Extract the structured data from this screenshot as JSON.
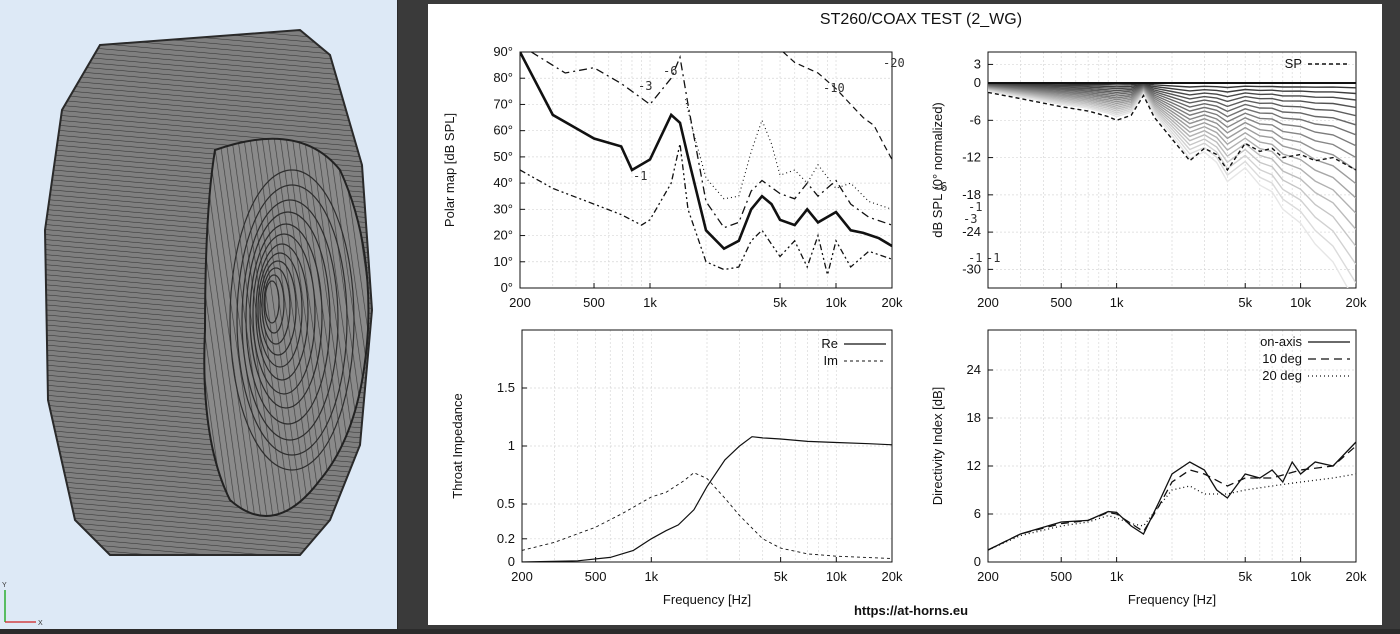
{
  "window": {
    "title": "ST260/COAX TEST (2_WG)",
    "url": "https://at-horns.eu"
  },
  "viewer": {
    "axis_y": "Y",
    "axis_x": "X"
  },
  "colors": {
    "viewer_background": "#dde9f6",
    "plot_background": "#ffffff",
    "mesh": "#7a7a7a",
    "curve": "#000000"
  },
  "charts": [
    {
      "id": "polar-map",
      "type": "contour",
      "ylabel": "Polar map [dB SPL]",
      "xscale": "log",
      "xlim": [
        200,
        20000
      ],
      "ylim": [
        0,
        90
      ],
      "x_ticks": [
        "200",
        "500",
        "1k",
        "5k",
        "10k",
        "20k"
      ],
      "y_ticks": [
        "0°",
        "10°",
        "20°",
        "30°",
        "40°",
        "50°",
        "60°",
        "70°",
        "80°",
        "90°"
      ],
      "contour_labels": [
        "-1",
        "-3",
        "-6",
        "-10",
        "-20",
        "-6",
        "-3",
        "-1",
        "-1",
        "-1"
      ],
      "series": [
        {
          "level": "-3",
          "x": [
            200,
            300,
            500,
            700,
            800,
            1000,
            1300,
            1450,
            1600,
            2000,
            2500,
            3000,
            3500,
            4000,
            4500,
            5000,
            6000,
            7000,
            8000,
            10000,
            12000,
            14000,
            17000,
            20000
          ],
          "y": [
            90,
            66,
            57,
            54,
            45,
            49,
            66,
            63,
            50,
            22,
            15,
            18,
            30,
            35,
            32,
            26,
            24,
            30,
            25,
            29,
            22,
            21,
            19,
            16
          ]
        },
        {
          "level": "-1",
          "x": [
            200,
            300,
            500,
            700,
            900,
            1000,
            1300,
            1450,
            1600,
            2000,
            2500,
            3000,
            3500,
            4000,
            5000,
            6000,
            7000,
            8000,
            9000,
            10000,
            12000,
            15000,
            20000
          ],
          "y": [
            45,
            38,
            32,
            28,
            24,
            26,
            40,
            55,
            30,
            10,
            7,
            8,
            18,
            22,
            12,
            18,
            8,
            20,
            5,
            18,
            8,
            14,
            11
          ]
        },
        {
          "level": "-6",
          "x": [
            230,
            350,
            500,
            700,
            1000,
            1300,
            1450,
            1600,
            2000,
            2500,
            3000,
            3500,
            4000,
            5000,
            6000,
            7000,
            8000,
            10000,
            12000,
            15000,
            20000
          ],
          "y": [
            90,
            82,
            84,
            78,
            70,
            80,
            88,
            70,
            33,
            23,
            25,
            37,
            41,
            36,
            34,
            40,
            35,
            41,
            32,
            27,
            24
          ]
        },
        {
          "level": "-10",
          "x": [
            1550,
            1700,
            2000,
            2500,
            3000,
            3500,
            4000,
            4500,
            5000,
            6000,
            7000,
            8000,
            10000,
            12000,
            15000,
            20000
          ],
          "y": [
            72,
            60,
            42,
            34,
            35,
            52,
            64,
            55,
            43,
            45,
            40,
            47,
            38,
            40,
            33,
            30
          ]
        },
        {
          "level": "-20",
          "x": [
            5200,
            6000,
            8000,
            10000,
            12000,
            14000,
            16000,
            18000,
            20000
          ],
          "y": [
            90,
            86,
            82,
            76,
            70,
            65,
            62,
            55,
            49
          ]
        }
      ]
    },
    {
      "id": "normalized-spl",
      "type": "line",
      "ylabel": "dB SPL (0° normalized)",
      "xscale": "log",
      "xlim": [
        200,
        20000
      ],
      "ylim": [
        -33,
        5
      ],
      "x_ticks": [
        "200",
        "500",
        "1k",
        "5k",
        "10k",
        "20k"
      ],
      "y_ticks": [
        "3",
        "0",
        "-6",
        "-12",
        "-18",
        "-24",
        "-30"
      ],
      "legend": [
        "SP"
      ],
      "sp_series": {
        "name": "SP",
        "x": [
          200,
          300,
          500,
          700,
          900,
          1000,
          1200,
          1400,
          1600,
          2000,
          2500,
          3000,
          3500,
          4000,
          5000,
          6000,
          7000,
          8000,
          10000,
          12000,
          15000,
          20000
        ],
        "y": [
          -1.5,
          -2.5,
          -3.8,
          -4.5,
          -5.4,
          -6,
          -5.2,
          -2,
          -5.5,
          -9,
          -12.5,
          -10.5,
          -11.5,
          -14,
          -9.7,
          -11,
          -10.5,
          -12,
          -11.5,
          -12.5,
          -12,
          -14
        ]
      }
    },
    {
      "id": "throat-impedance",
      "type": "line",
      "ylabel": "Throat Impedance",
      "xlabel": "Frequency [Hz]",
      "xscale": "log",
      "xlim": [
        200,
        20000
      ],
      "ylim": [
        0,
        2
      ],
      "x_ticks": [
        "200",
        "500",
        "1k",
        "5k",
        "10k",
        "20k"
      ],
      "y_ticks": [
        "0",
        "0.2",
        "0.5",
        "1",
        "1.5"
      ],
      "legend": [
        "Re",
        "Im"
      ],
      "series": [
        {
          "name": "Re",
          "x": [
            200,
            400,
            600,
            800,
            1000,
            1200,
            1400,
            1700,
            2000,
            2500,
            3000,
            3500,
            4000,
            5000,
            7000,
            10000,
            15000,
            20000
          ],
          "y": [
            0,
            0.01,
            0.04,
            0.1,
            0.2,
            0.27,
            0.32,
            0.45,
            0.65,
            0.88,
            1.0,
            1.08,
            1.07,
            1.06,
            1.04,
            1.03,
            1.02,
            1.01
          ]
        },
        {
          "name": "Im",
          "x": [
            200,
            300,
            500,
            700,
            1000,
            1200,
            1500,
            1700,
            2000,
            2500,
            3000,
            4000,
            5000,
            7000,
            10000,
            20000
          ],
          "y": [
            0.1,
            0.17,
            0.3,
            0.42,
            0.56,
            0.6,
            0.7,
            0.77,
            0.72,
            0.55,
            0.4,
            0.2,
            0.12,
            0.07,
            0.05,
            0.03
          ]
        }
      ]
    },
    {
      "id": "directivity-index",
      "type": "line",
      "ylabel": "Directivity Index [dB]",
      "xlabel": "Frequency [Hz]",
      "xscale": "log",
      "xlim": [
        200,
        20000
      ],
      "ylim": [
        0,
        29
      ],
      "x_ticks": [
        "200",
        "500",
        "1k",
        "5k",
        "10k",
        "20k"
      ],
      "y_ticks": [
        "0",
        "6",
        "12",
        "18",
        "24"
      ],
      "legend": [
        "on-axis",
        "10 deg",
        "20 deg"
      ],
      "series": [
        {
          "name": "on-axis",
          "x": [
            200,
            300,
            500,
            700,
            900,
            1000,
            1200,
            1400,
            1700,
            2000,
            2500,
            3000,
            3500,
            4000,
            5000,
            6000,
            7000,
            8000,
            9000,
            10000,
            12000,
            15000,
            20000
          ],
          "y": [
            1.5,
            3.5,
            5,
            5.2,
            6.3,
            6.2,
            4.5,
            3.5,
            7.5,
            11,
            12.5,
            11.5,
            9,
            8,
            11,
            10.5,
            11.5,
            10,
            12.5,
            11,
            12.5,
            12,
            15
          ]
        },
        {
          "name": "10 deg",
          "x": [
            200,
            300,
            500,
            700,
            900,
            1000,
            1200,
            1400,
            1700,
            2000,
            2500,
            3000,
            4000,
            5000,
            7000,
            10000,
            15000,
            20000
          ],
          "y": [
            1.5,
            3.5,
            4.8,
            5.2,
            6.2,
            6,
            4.8,
            3.8,
            7,
            10,
            11.5,
            11,
            9.5,
            10.5,
            10.5,
            11.5,
            12,
            14.5
          ]
        },
        {
          "name": "20 deg",
          "x": [
            200,
            300,
            500,
            700,
            900,
            1000,
            1200,
            1400,
            1700,
            2000,
            2500,
            3000,
            4000,
            5000,
            7000,
            10000,
            15000,
            20000
          ],
          "y": [
            1.5,
            3.3,
            4.5,
            5,
            5.8,
            5.5,
            4.8,
            4.5,
            7,
            9,
            9.5,
            8.5,
            8.5,
            9,
            9.5,
            10,
            10.5,
            11
          ]
        }
      ]
    }
  ]
}
